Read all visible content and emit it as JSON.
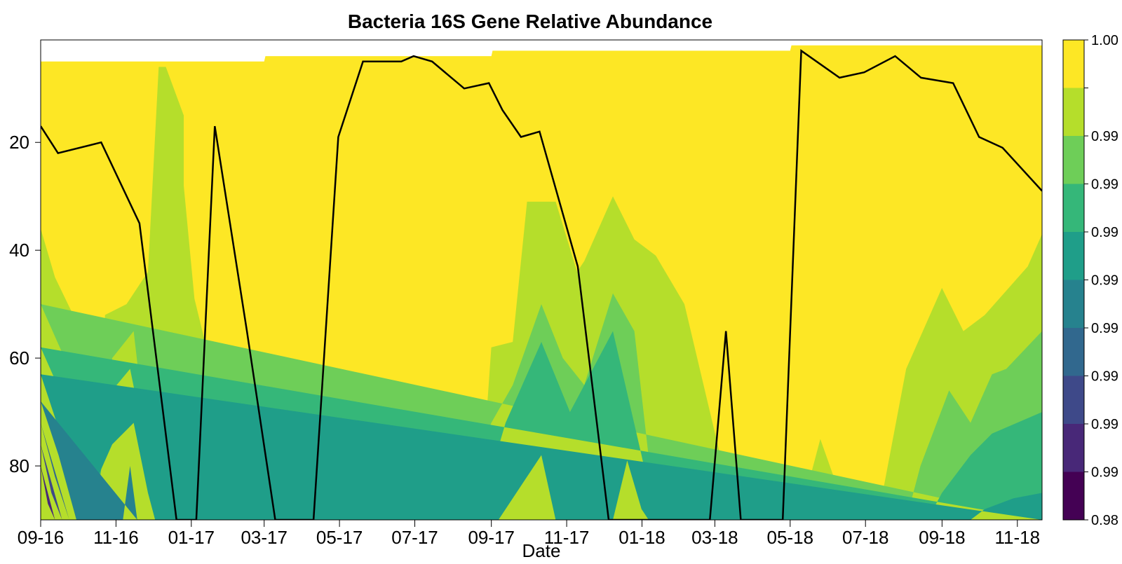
{
  "chart_data": {
    "type": "heatmap",
    "title": "Bacteria 16S Gene Relative Abundance",
    "xlabel": "Date",
    "ylabel": "",
    "x_tick_labels": [
      "09-16",
      "11-16",
      "01-17",
      "03-17",
      "05-17",
      "07-17",
      "09-17",
      "11-17",
      "01-18",
      "03-18",
      "05-18",
      "07-18",
      "09-18",
      "11-18"
    ],
    "x_tick_values": [
      "2016-09-01",
      "2016-11-01",
      "2017-01-01",
      "2017-03-01",
      "2017-05-01",
      "2017-07-01",
      "2017-09-01",
      "2017-11-01",
      "2018-01-01",
      "2018-03-01",
      "2018-05-01",
      "2018-07-01",
      "2018-09-01",
      "2018-11-01"
    ],
    "xlim": [
      "2016-09-01",
      "2018-11-21"
    ],
    "y_tick_values": [
      20,
      40,
      60,
      80
    ],
    "ylim": [
      1,
      90
    ],
    "y_reversed": true,
    "colorbar": {
      "levels": [
        0.98,
        0.982,
        0.984,
        0.986,
        0.988,
        0.99,
        0.992,
        0.994,
        0.996,
        0.998,
        1.0
      ],
      "colors": [
        "#440154",
        "#482878",
        "#3E4989",
        "#31688E",
        "#26828E",
        "#1F9E89",
        "#35B779",
        "#6ECE58",
        "#B5DE2B",
        "#FDE725"
      ],
      "labels": [
        "0.98",
        "0.99",
        "0.99",
        "0.99",
        "0.99",
        "0.99",
        "0.99",
        "0.99",
        "0.99",
        "1.00"
      ]
    },
    "surface_profile": {
      "x": [
        "2016-09-01",
        "2017-03-01",
        "2017-03-02",
        "2017-09-01",
        "2017-09-02",
        "2018-05-01",
        "2018-05-02",
        "2018-11-21"
      ],
      "y": [
        5,
        5,
        4,
        4,
        3,
        3,
        2,
        2
      ]
    },
    "line_series": {
      "x": [
        "2016-09-01",
        "2016-09-15",
        "2016-10-20",
        "2016-11-20",
        "2016-12-20",
        "2017-01-05",
        "2017-01-20",
        "2017-02-15",
        "2017-03-10",
        "2017-04-10",
        "2017-04-30",
        "2017-05-20",
        "2017-06-20",
        "2017-06-30",
        "2017-07-15",
        "2017-08-10",
        "2017-08-30",
        "2017-09-10",
        "2017-09-25",
        "2017-10-10",
        "2017-11-10",
        "2017-12-05",
        "2018-02-25",
        "2018-03-10",
        "2018-03-22",
        "2018-04-25",
        "2018-05-10",
        "2018-06-10",
        "2018-06-30",
        "2018-07-25",
        "2018-08-15",
        "2018-09-10",
        "2018-10-01",
        "2018-10-20",
        "2018-11-21"
      ],
      "y": [
        17,
        22,
        20,
        35,
        90,
        90,
        17,
        55,
        90,
        90,
        19,
        5,
        5,
        4,
        5,
        10,
        9,
        14,
        19,
        18,
        43,
        90,
        90,
        55,
        90,
        90,
        3,
        8,
        7,
        4,
        8,
        9,
        19,
        21,
        29
      ]
    },
    "contour_bands": [
      {
        "level": 0.998,
        "top": [
          [
            0,
            36
          ],
          [
            20,
            45
          ],
          [
            60,
            56
          ],
          [
            80,
            76
          ],
          [
            90,
            52
          ],
          [
            120,
            50
          ],
          [
            150,
            44
          ],
          [
            165,
            6
          ],
          [
            175,
            6
          ],
          [
            200,
            15
          ],
          [
            200,
            28
          ],
          [
            215,
            49
          ],
          [
            250,
            68
          ],
          [
            280,
            80
          ],
          [
            300,
            68
          ],
          [
            330,
            73
          ],
          [
            370,
            90
          ],
          [
            560,
            90
          ],
          [
            580,
            72
          ],
          [
            600,
            77
          ],
          [
            620,
            77
          ],
          [
            630,
            58
          ],
          [
            660,
            57
          ],
          [
            680,
            31
          ],
          [
            720,
            31
          ],
          [
            750,
            44
          ],
          [
            760,
            42
          ],
          [
            800,
            30
          ],
          [
            830,
            38
          ],
          [
            860,
            41
          ],
          [
            900,
            50
          ],
          [
            950,
            78
          ],
          [
            1000,
            90
          ],
          [
            1060,
            90
          ],
          [
            1090,
            75
          ],
          [
            1130,
            90
          ],
          [
            1170,
            90
          ],
          [
            1210,
            62
          ],
          [
            1260,
            47
          ],
          [
            1290,
            55
          ],
          [
            1320,
            52
          ],
          [
            1380,
            43
          ],
          [
            1400,
            37
          ],
          [
            1400,
            90
          ],
          [
            0,
            90
          ]
        ]
      },
      {
        "level": 0.996,
        "top": [
          [
            0,
            50
          ],
          [
            50,
            65
          ],
          [
            90,
            76
          ],
          [
            100,
            60
          ],
          [
            130,
            55
          ],
          [
            150,
            78
          ],
          [
            185,
            90
          ],
          [
            590,
            90
          ],
          [
            600,
            82
          ],
          [
            630,
            72
          ],
          [
            660,
            65
          ],
          [
            700,
            50
          ],
          [
            730,
            60
          ],
          [
            760,
            65
          ],
          [
            800,
            48
          ],
          [
            830,
            55
          ],
          [
            860,
            90
          ],
          [
            1210,
            90
          ],
          [
            1230,
            80
          ],
          [
            1270,
            66
          ],
          [
            1300,
            72
          ],
          [
            1330,
            63
          ],
          [
            1350,
            62
          ],
          [
            1400,
            55
          ],
          [
            1400,
            90
          ]
        ]
      },
      {
        "level": 0.994,
        "top": [
          [
            0,
            58
          ],
          [
            40,
            70
          ],
          [
            80,
            85
          ],
          [
            100,
            66
          ],
          [
            125,
            62
          ],
          [
            145,
            75
          ],
          [
            170,
            90
          ],
          [
            610,
            90
          ],
          [
            650,
            72
          ],
          [
            700,
            57
          ],
          [
            740,
            70
          ],
          [
            800,
            55
          ],
          [
            840,
            78
          ],
          [
            860,
            90
          ],
          [
            1240,
            90
          ],
          [
            1260,
            85
          ],
          [
            1300,
            78
          ],
          [
            1330,
            74
          ],
          [
            1400,
            70
          ],
          [
            1400,
            90
          ]
        ]
      },
      {
        "level": 0.992,
        "top": [
          [
            0,
            63
          ],
          [
            30,
            75
          ],
          [
            60,
            88
          ],
          [
            100,
            76
          ],
          [
            130,
            72
          ],
          [
            150,
            85
          ],
          [
            160,
            90
          ],
          [
            640,
            90
          ],
          [
            650,
            88
          ],
          [
            680,
            82
          ],
          [
            700,
            78
          ],
          [
            720,
            90
          ],
          [
            800,
            90
          ],
          [
            820,
            79
          ],
          [
            840,
            88
          ],
          [
            850,
            90
          ],
          [
            1300,
            90
          ],
          [
            1320,
            88
          ],
          [
            1360,
            86
          ],
          [
            1400,
            85
          ],
          [
            1400,
            90
          ]
        ]
      },
      {
        "level": 0.99,
        "top": [
          [
            0,
            68
          ],
          [
            25,
            78
          ],
          [
            50,
            90
          ],
          [
            115,
            90
          ],
          [
            125,
            80
          ],
          [
            135,
            90
          ]
        ]
      },
      {
        "level": 0.988,
        "top": [
          [
            0,
            72
          ],
          [
            20,
            82
          ],
          [
            40,
            90
          ]
        ]
      },
      {
        "level": 0.986,
        "top": [
          [
            0,
            76
          ],
          [
            15,
            85
          ],
          [
            30,
            90
          ]
        ]
      },
      {
        "level": 0.984,
        "top": [
          [
            0,
            80
          ],
          [
            10,
            87
          ],
          [
            20,
            90
          ]
        ]
      },
      {
        "level": 0.982,
        "top": [
          [
            0,
            84
          ],
          [
            8,
            90
          ]
        ]
      }
    ]
  }
}
